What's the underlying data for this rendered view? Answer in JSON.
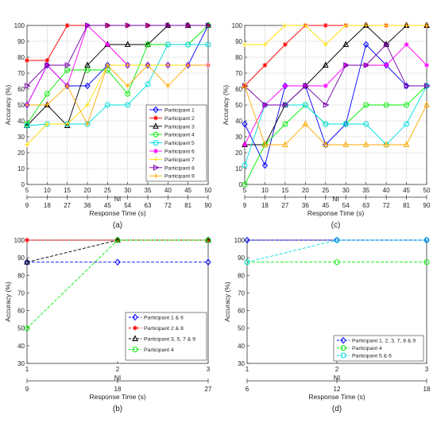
{
  "chart_data": [
    {
      "panel_label": "(a)",
      "type": "line",
      "x": [
        5,
        10,
        15,
        20,
        25,
        30,
        35,
        40,
        45,
        50
      ],
      "xlabel": "NI",
      "ylabel": "Accuracy (%)",
      "xlim": [
        5,
        50
      ],
      "ylim": [
        0,
        100
      ],
      "yticks": [
        0,
        10,
        20,
        30,
        40,
        50,
        60,
        70,
        80,
        90,
        100
      ],
      "secondary_axis": {
        "label": "Response Time (s)",
        "ticks": [
          "9",
          "18",
          "27",
          "36",
          "45",
          "54",
          "63",
          "72",
          "81",
          "90"
        ]
      },
      "grid": true,
      "legend_position": "bottom-right",
      "series": [
        {
          "name": "Participant 1",
          "color": "#0000ff",
          "marker": "diamond",
          "values": [
            50,
            75,
            62,
            62,
            75,
            75,
            75,
            75,
            75,
            100
          ]
        },
        {
          "name": "Participant 2",
          "color": "#ff0000",
          "marker": "star",
          "values": [
            78,
            78,
            100,
            100,
            100,
            100,
            100,
            100,
            100,
            100
          ]
        },
        {
          "name": "Participant 3",
          "color": "#000000",
          "marker": "triangle-up",
          "values": [
            37,
            50,
            37,
            75,
            88,
            88,
            88,
            100,
            100,
            100
          ]
        },
        {
          "name": "Participant 4",
          "color": "#00ee00",
          "marker": "circle",
          "values": [
            38,
            57,
            72,
            72,
            72,
            57,
            88,
            88,
            88,
            100
          ]
        },
        {
          "name": "Participant 5",
          "color": "#00dddd",
          "marker": "circle",
          "values": [
            37,
            38,
            38,
            38,
            50,
            50,
            63,
            88,
            88,
            88
          ]
        },
        {
          "name": "Participant 6",
          "color": "#ff00ff",
          "marker": "star",
          "values": [
            50,
            75,
            62,
            100,
            88,
            75,
            75,
            75,
            75,
            75
          ]
        },
        {
          "name": "Participant 7",
          "color": "#ffdd00",
          "marker": "plus",
          "values": [
            25,
            38,
            38,
            50,
            75,
            75,
            75,
            75,
            75,
            75
          ]
        },
        {
          "name": "Participant 8",
          "color": "#7700aa",
          "marker": "triangle-right",
          "values": [
            62,
            75,
            75,
            100,
            100,
            100,
            100,
            100,
            100,
            100
          ]
        },
        {
          "name": "Participant 9",
          "color": "#ffaa00",
          "marker": "plus",
          "values": [
            50,
            50,
            62,
            38,
            75,
            62,
            75,
            62,
            75,
            75
          ]
        }
      ]
    },
    {
      "panel_label": "(c)",
      "type": "line",
      "x": [
        5,
        10,
        15,
        20,
        25,
        30,
        35,
        40,
        45,
        50
      ],
      "xlabel": "NI",
      "ylabel": "Accuracy (%)",
      "xlim": [
        5,
        50
      ],
      "ylim": [
        0,
        100
      ],
      "yticks": [
        0,
        10,
        20,
        30,
        40,
        50,
        60,
        70,
        80,
        90,
        100
      ],
      "secondary_axis": {
        "label": "Response Time (s)",
        "ticks": [
          "9",
          "18",
          "27",
          "36",
          "45",
          "54",
          "63",
          "72",
          "81",
          "90"
        ]
      },
      "grid": true,
      "series": [
        {
          "color": "#0000ff",
          "marker": "diamond",
          "values": [
            38,
            12,
            62,
            62,
            25,
            38,
            88,
            75,
            62,
            62
          ]
        },
        {
          "color": "#ff0000",
          "marker": "star",
          "values": [
            62,
            75,
            88,
            100,
            100,
            100,
            100,
            100,
            100,
            100
          ]
        },
        {
          "color": "#000000",
          "marker": "triangle-up",
          "values": [
            25,
            25,
            50,
            62,
            75,
            88,
            100,
            88,
            100,
            100
          ]
        },
        {
          "color": "#00ee00",
          "marker": "circle",
          "values": [
            0,
            25,
            38,
            50,
            38,
            38,
            50,
            50,
            50,
            62
          ]
        },
        {
          "color": "#00dddd",
          "marker": "circle",
          "values": [
            12,
            50,
            50,
            50,
            38,
            38,
            38,
            25,
            38,
            62
          ]
        },
        {
          "color": "#ff00ff",
          "marker": "star",
          "values": [
            25,
            50,
            62,
            62,
            62,
            75,
            75,
            75,
            88,
            75
          ]
        },
        {
          "color": "#ffdd00",
          "marker": "plus",
          "values": [
            88,
            88,
            100,
            100,
            88,
            100,
            100,
            100,
            100,
            100
          ]
        },
        {
          "color": "#7700aa",
          "marker": "triangle-right",
          "values": [
            62,
            50,
            50,
            62,
            50,
            75,
            75,
            88,
            62,
            62
          ]
        },
        {
          "color": "#ffaa00",
          "marker": "triangle-up",
          "values": [
            62,
            25,
            25,
            38,
            25,
            25,
            25,
            25,
            25,
            50
          ]
        }
      ]
    },
    {
      "panel_label": "(b)",
      "type": "line",
      "line_style": "dashed",
      "x": [
        1,
        2,
        3
      ],
      "xlabel": "NI",
      "ylabel": "Accuracy (%)",
      "xlim": [
        1,
        3
      ],
      "ylim": [
        30,
        100
      ],
      "yticks": [
        30,
        40,
        50,
        60,
        70,
        80,
        90,
        100
      ],
      "secondary_axis": {
        "label": "Response Time (s)",
        "ticks": [
          "9",
          "18",
          "27"
        ]
      },
      "grid": false,
      "legend_position": "bottom-right",
      "series": [
        {
          "name": "Participant 1 & 6",
          "color": "#0000ff",
          "marker": "diamond",
          "values": [
            87.5,
            87.5,
            87.5
          ]
        },
        {
          "name": "Participant 2 & 8",
          "color": "#ff0000",
          "marker": "star",
          "values": [
            100,
            100,
            100
          ]
        },
        {
          "name": "Participant 3, 5, 7 & 9",
          "color": "#000000",
          "marker": "triangle-up",
          "values": [
            87.5,
            100,
            100
          ]
        },
        {
          "name": "Participant 4",
          "color": "#00ee00",
          "marker": "circle",
          "values": [
            50,
            100,
            100
          ]
        }
      ]
    },
    {
      "panel_label": "(d)",
      "type": "line",
      "line_style": "dashed",
      "x": [
        1,
        2,
        3
      ],
      "xlabel": "NI",
      "ylabel": "Accuracy (%)",
      "xlim": [
        1,
        3
      ],
      "ylim": [
        30,
        100
      ],
      "yticks": [
        30,
        40,
        50,
        60,
        70,
        80,
        90,
        100
      ],
      "secondary_axis": {
        "label": "Response Time (s)",
        "ticks": [
          "6",
          "12",
          "18"
        ]
      },
      "grid": false,
      "legend_position": "bottom-right",
      "series": [
        {
          "name": "Participant 1, 2, 3, 7, 8 & 9",
          "color": "#0000ff",
          "marker": "diamond",
          "values": [
            100,
            100,
            100
          ]
        },
        {
          "name": "Participant 4",
          "color": "#00ee00",
          "marker": "circle",
          "values": [
            87.5,
            87.5,
            87.5
          ]
        },
        {
          "name": "Participant 5 & 6",
          "color": "#00dddd",
          "marker": "circle",
          "values": [
            87.5,
            100,
            100
          ]
        }
      ]
    }
  ]
}
